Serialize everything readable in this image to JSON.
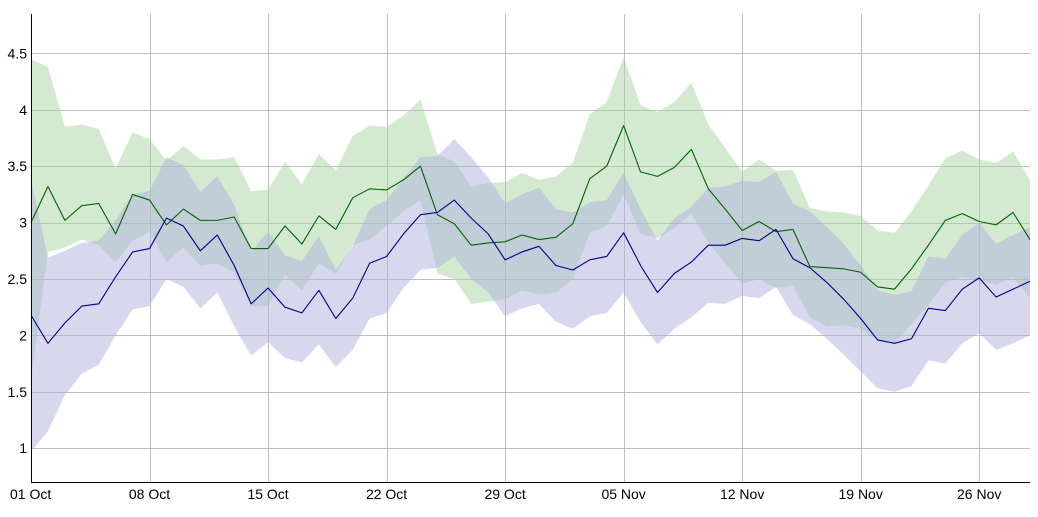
{
  "chart_data": {
    "type": "area",
    "title": "",
    "xlabel": "",
    "ylabel": "",
    "x_start": "2023-10-01",
    "x_end": "2023-11-29",
    "ylim": [
      0.7,
      4.85
    ],
    "grid": true,
    "legend": "none",
    "x_ticks": [
      {
        "date": "2023-10-01",
        "label": "01 Oct"
      },
      {
        "date": "2023-10-08",
        "label": "08 Oct"
      },
      {
        "date": "2023-10-15",
        "label": "15 Oct"
      },
      {
        "date": "2023-10-22",
        "label": "22 Oct"
      },
      {
        "date": "2023-10-29",
        "label": "29 Oct"
      },
      {
        "date": "2023-11-05",
        "label": "05 Nov"
      },
      {
        "date": "2023-11-12",
        "label": "12 Nov"
      },
      {
        "date": "2023-11-19",
        "label": "19 Nov"
      },
      {
        "date": "2023-11-26",
        "label": "26 Nov"
      }
    ],
    "y_ticks": [
      {
        "value": 1,
        "label": "1"
      },
      {
        "value": 1.5,
        "label": "1.5"
      },
      {
        "value": 2,
        "label": "2"
      },
      {
        "value": 2.5,
        "label": "2.5"
      },
      {
        "value": 3,
        "label": "3"
      },
      {
        "value": 3.5,
        "label": "3.5"
      },
      {
        "value": 4,
        "label": "4"
      },
      {
        "value": 4.5,
        "label": "4.5"
      }
    ],
    "series": [
      {
        "color": "#006400",
        "band_color": "#a8d5a2",
        "values": [
          3.0,
          3.32,
          3.02,
          3.15,
          3.17,
          2.9,
          3.25,
          3.2,
          2.98,
          3.12,
          3.02,
          3.02,
          3.05,
          2.77,
          2.77,
          2.97,
          2.81,
          3.06,
          2.94,
          3.22,
          3.3,
          3.29,
          3.38,
          3.5,
          3.07,
          2.99,
          2.8,
          2.82,
          2.83,
          2.89,
          2.85,
          2.87,
          2.99,
          3.39,
          3.5,
          3.86,
          3.45,
          3.41,
          3.49,
          3.65,
          3.3,
          3.12,
          2.93,
          3.01,
          2.92,
          2.94,
          2.61,
          2.6,
          2.59,
          2.56,
          2.43,
          2.41,
          2.59,
          2.8,
          3.02,
          3.08,
          3.01,
          2.98,
          3.09,
          2.85
        ],
        "lower": [
          1.6,
          2.74,
          2.78,
          2.85,
          2.8,
          2.65,
          2.84,
          2.92,
          2.65,
          2.78,
          2.62,
          2.64,
          2.56,
          2.26,
          2.26,
          2.54,
          2.4,
          2.64,
          2.55,
          2.8,
          2.85,
          2.97,
          3.1,
          3.2,
          2.55,
          2.5,
          2.28,
          2.3,
          2.32,
          2.4,
          2.36,
          2.38,
          2.5,
          2.91,
          2.97,
          3.25,
          2.9,
          2.86,
          2.95,
          3.08,
          2.82,
          2.64,
          2.46,
          2.5,
          2.42,
          2.44,
          2.16,
          2.08,
          2.09,
          2.06,
          1.95,
          1.93,
          2.1,
          2.27,
          2.47,
          2.52,
          2.48,
          2.45,
          2.52,
          2.33
        ],
        "upper": [
          4.45,
          4.38,
          3.85,
          3.87,
          3.83,
          3.48,
          3.8,
          3.74,
          3.55,
          3.68,
          3.56,
          3.56,
          3.58,
          3.28,
          3.29,
          3.54,
          3.34,
          3.61,
          3.46,
          3.77,
          3.86,
          3.85,
          3.95,
          4.09,
          3.61,
          3.54,
          3.32,
          3.35,
          3.36,
          3.44,
          3.38,
          3.41,
          3.53,
          3.96,
          4.07,
          4.47,
          4.04,
          3.98,
          4.07,
          4.24,
          3.87,
          3.66,
          3.45,
          3.56,
          3.46,
          3.47,
          3.13,
          3.1,
          3.09,
          3.06,
          2.93,
          2.91,
          3.1,
          3.33,
          3.57,
          3.64,
          3.56,
          3.53,
          3.63,
          3.38
        ]
      },
      {
        "color": "#00008b",
        "band_color": "#b0b0dd",
        "values": [
          2.18,
          1.93,
          2.11,
          2.26,
          2.28,
          2.52,
          2.74,
          2.77,
          3.04,
          2.97,
          2.75,
          2.89,
          2.62,
          2.28,
          2.42,
          2.25,
          2.2,
          2.4,
          2.15,
          2.33,
          2.64,
          2.7,
          2.9,
          3.07,
          3.09,
          3.2,
          3.04,
          2.9,
          2.67,
          2.74,
          2.79,
          2.62,
          2.58,
          2.67,
          2.7,
          2.91,
          2.62,
          2.38,
          2.55,
          2.65,
          2.8,
          2.8,
          2.86,
          2.84,
          2.94,
          2.68,
          2.6,
          2.47,
          2.32,
          2.15,
          1.96,
          1.93,
          1.97,
          2.24,
          2.22,
          2.41,
          2.51,
          2.34,
          2.41,
          2.48
        ],
        "lower": [
          0.97,
          1.15,
          1.47,
          1.66,
          1.74,
          2.0,
          2.23,
          2.26,
          2.5,
          2.43,
          2.24,
          2.38,
          2.08,
          1.82,
          1.94,
          1.8,
          1.76,
          1.92,
          1.72,
          1.87,
          2.15,
          2.2,
          2.42,
          2.58,
          2.6,
          2.7,
          2.5,
          2.38,
          2.17,
          2.24,
          2.28,
          2.12,
          2.06,
          2.17,
          2.2,
          2.38,
          2.12,
          1.92,
          2.06,
          2.16,
          2.29,
          2.28,
          2.35,
          2.33,
          2.43,
          2.18,
          2.1,
          1.97,
          1.83,
          1.68,
          1.53,
          1.5,
          1.55,
          1.78,
          1.75,
          1.93,
          2.02,
          1.87,
          1.93,
          2.0
        ],
        "upper": [
          3.38,
          2.69,
          2.75,
          2.82,
          2.84,
          3.02,
          3.25,
          3.28,
          3.58,
          3.51,
          3.27,
          3.41,
          3.16,
          2.74,
          2.92,
          2.71,
          2.66,
          2.88,
          2.58,
          2.79,
          3.12,
          3.2,
          3.39,
          3.58,
          3.59,
          3.74,
          3.58,
          3.4,
          3.17,
          3.25,
          3.31,
          3.12,
          3.09,
          3.18,
          3.2,
          3.44,
          3.12,
          2.84,
          3.04,
          3.14,
          3.31,
          3.32,
          3.37,
          3.36,
          3.45,
          3.17,
          3.1,
          2.96,
          2.81,
          2.62,
          2.4,
          2.36,
          2.39,
          2.7,
          2.68,
          2.89,
          3.0,
          2.81,
          2.89,
          2.96
        ]
      }
    ]
  }
}
